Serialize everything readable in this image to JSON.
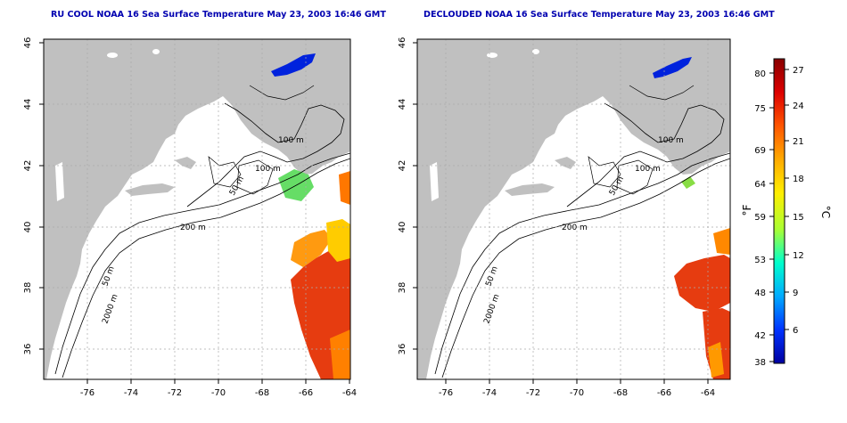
{
  "panels": [
    {
      "title": "RU COOL NOAA 16 Sea Surface Temperature May 23, 2003 16:46 GMT",
      "contour_labels": [
        "100 m",
        "100 m",
        "50 m",
        "200 m",
        "50 m",
        "2000 m"
      ]
    },
    {
      "title": "DECLOUDED NOAA 16 Sea Surface Temperature May 23, 2003 16:46 GMT",
      "contour_labels": [
        "100 m",
        "100 m",
        "50 m",
        "200 m",
        "50 m",
        "2000 m"
      ]
    }
  ],
  "map_axes": {
    "x_ticks": [
      "-76",
      "-74",
      "-72",
      "-70",
      "-68",
      "-66",
      "-64"
    ],
    "y_ticks": [
      "36",
      "38",
      "40",
      "42",
      "44",
      "46"
    ],
    "x_range": [
      -77,
      -63
    ],
    "y_range": [
      35,
      46
    ]
  },
  "colorbar": {
    "fahrenheit_label": "°F",
    "celsius_label": "°C",
    "fahrenheit_ticks": [
      "80",
      "75",
      "69",
      "64",
      "59",
      "53",
      "48",
      "42",
      "38"
    ],
    "celsius_ticks": [
      "27",
      "24",
      "21",
      "18",
      "15",
      "12",
      "9",
      "6"
    ],
    "colors": [
      "#0000a0",
      "#0033ff",
      "#00aaff",
      "#00ffcc",
      "#aaff33",
      "#ffee00",
      "#ffaa00",
      "#ff5500",
      "#dd0000",
      "#880000"
    ]
  },
  "colors": {
    "land": "#c0c0c0",
    "ocean": "#ffffff",
    "title": "#0000b0",
    "grid": "#aaaaaa"
  }
}
